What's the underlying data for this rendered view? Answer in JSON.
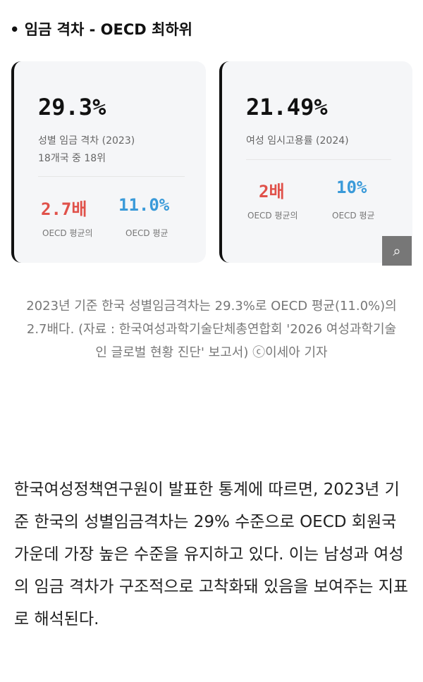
{
  "title": "• 임금 격차 - OECD 최하위",
  "cards": [
    {
      "value": "29.3%",
      "label": "성별 임금 격차 (2023)",
      "rank": "18개국 중 18위",
      "stats": [
        {
          "value": "2.7배",
          "label": "OECD 평균의",
          "color": "#e0514a"
        },
        {
          "value": "11.0%",
          "label": "OECD 평균",
          "color": "#3a9ad9"
        }
      ]
    },
    {
      "value": "21.49%",
      "label": "여성 임시고용률 (2024)",
      "stats": [
        {
          "value": "2배",
          "label": "OECD 평균의",
          "color": "#e0514a"
        },
        {
          "value": "10%",
          "label": "OECD 평균",
          "color": "#3a9ad9"
        }
      ]
    }
  ],
  "zoom_icon": "zoom-in-icon",
  "caption": "2023년 기준 한국 성별임금격차는 29.3%로 OECD 평균(11.0%)의 2.7배다. (자료 : 한국여성과학기술단체총연합회 '2026 여성과학기술인 글로벌 현황 진단' 보고서) ⓒ이세아 기자",
  "body": "한국여성정책연구원이 발표한 통계에 따르면, 2023년 기준 한국의 성별임금격차는 29% 수준으로 OECD 회원국 가운데 가장 높은 수준을 유지하고 있다. 이는 남성과 여성의 임금 격차가 구조적으로 고착화돼 있음을 보여주는 지표로 해석된다."
}
